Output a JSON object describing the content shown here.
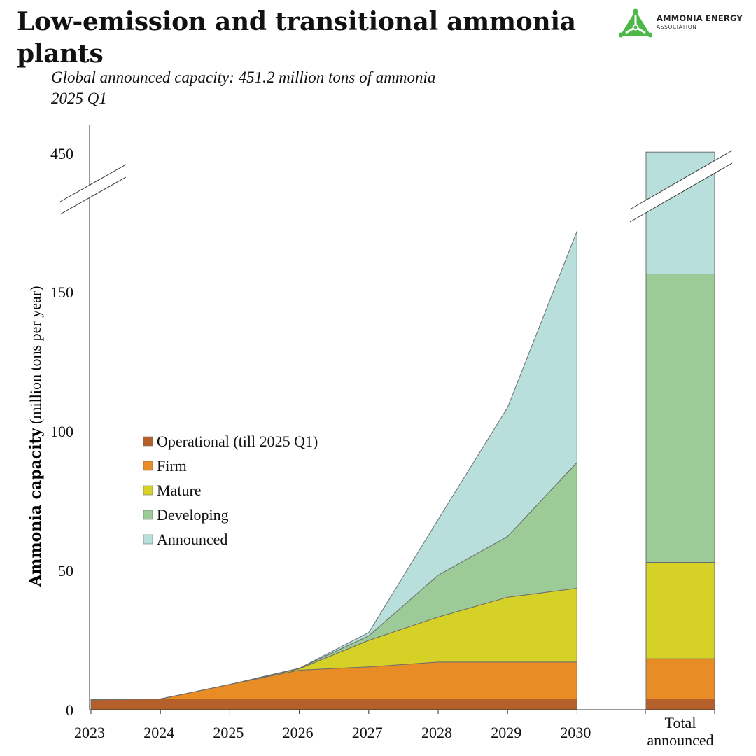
{
  "title": "Low-emission and transitional ammonia plants",
  "subtitle_line1": "Global announced capacity: 451.2 million tons of ammonia",
  "subtitle_line2": "2025 Q1",
  "logo": {
    "name": "AMMONIA ENERGY",
    "sub": "ASSOCIATION",
    "color": "#4db848"
  },
  "chart_data": {
    "type": "area",
    "x": [
      2023,
      2024,
      2025,
      2026,
      2027,
      2028,
      2029,
      2030
    ],
    "x_tick_labels": [
      "2023",
      "2024",
      "2025",
      "2026",
      "2027",
      "2028",
      "2029",
      "2030"
    ],
    "ylabel_bold": "Ammonia capacity",
    "ylabel_regular": " (million tons per year)",
    "y_ticks": [
      0,
      50,
      100,
      150,
      450
    ],
    "axis_break": true,
    "series": [
      {
        "name": "Operational (till 2025 Q1)",
        "color": "#b5602a",
        "values": [
          3.6,
          3.9,
          3.9,
          3.9,
          3.9,
          3.9,
          3.9,
          3.9
        ]
      },
      {
        "name": "Firm",
        "color": "#e88d26",
        "values": [
          0,
          0,
          5.2,
          10.3,
          11.5,
          13.2,
          13.2,
          13.2
        ]
      },
      {
        "name": "Mature",
        "color": "#d6d126",
        "values": [
          0,
          0,
          0,
          0.5,
          9.5,
          16.2,
          23.3,
          26.5
        ]
      },
      {
        "name": "Developing",
        "color": "#9ccb98",
        "values": [
          0,
          0,
          0,
          0.2,
          1.6,
          15.0,
          21.8,
          45.2
        ]
      },
      {
        "name": "Announced",
        "color": "#b8dfdb",
        "values": [
          0,
          0,
          0,
          0,
          1.2,
          20.0,
          46.3,
          83.0
        ]
      }
    ],
    "total": {
      "label_line1": "Total",
      "label_line2": "announced",
      "values": [
        3.9,
        14.4,
        34.6,
        103.5,
        294.8
      ]
    },
    "legend_position": "middle-left"
  }
}
